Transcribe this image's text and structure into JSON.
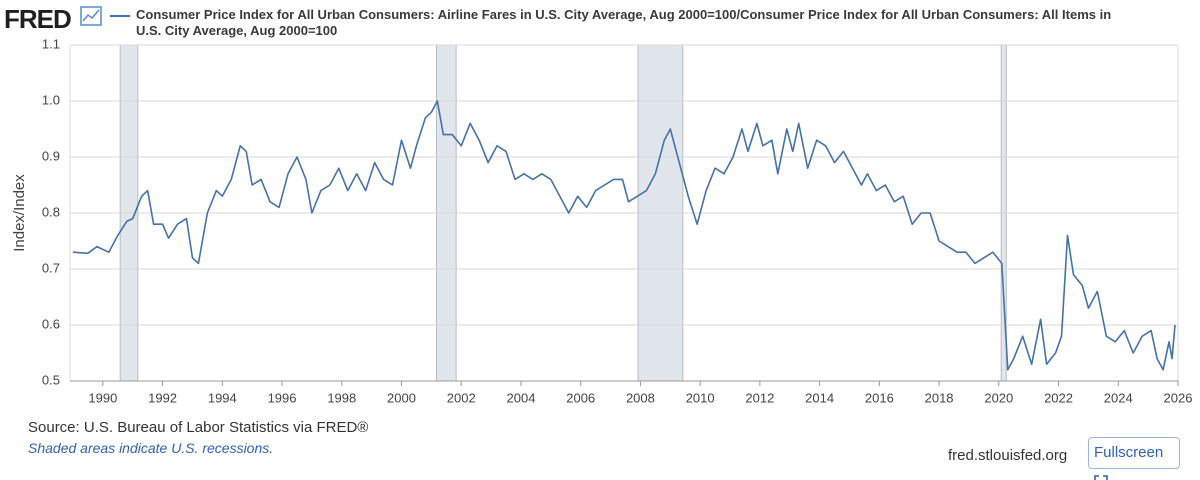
{
  "logo": "FRED",
  "site": "fred.stlouisfed.org",
  "fullscreen": "Fullscreen",
  "chart_data": {
    "type": "line",
    "ylabel": "Index/Index",
    "source": "Source: U.S. Bureau of Labor Statistics via FRED®",
    "note": "Shaded areas indicate U.S. recessions.",
    "xlim": [
      1988.9,
      2026.0
    ],
    "xticks": [
      1990,
      1992,
      1994,
      1996,
      1998,
      2000,
      2002,
      2004,
      2006,
      2008,
      2010,
      2012,
      2014,
      2016,
      2018,
      2020,
      2022,
      2024,
      2026
    ],
    "ylim": [
      0.5,
      1.1
    ],
    "yticks": [
      0.5,
      0.6,
      0.7,
      0.8,
      0.9,
      {
        "value": 1,
        "label": "1.0"
      },
      1.1
    ],
    "grid": true,
    "recessions": [
      [
        1990.58,
        1991.17
      ],
      [
        2001.17,
        2001.83
      ],
      [
        2007.92,
        2009.42
      ],
      [
        2020.08,
        2020.25
      ]
    ],
    "x": [
      1989.0,
      1989.5,
      1989.8,
      1990.2,
      1990.5,
      1990.8,
      1991.0,
      1991.3,
      1991.5,
      1991.7,
      1992.0,
      1992.2,
      1992.5,
      1992.8,
      1993.0,
      1993.2,
      1993.5,
      1993.8,
      1994.0,
      1994.3,
      1994.6,
      1994.8,
      1995.0,
      1995.3,
      1995.6,
      1995.9,
      1996.2,
      1996.5,
      1996.8,
      1997.0,
      1997.3,
      1997.6,
      1997.9,
      1998.2,
      1998.5,
      1998.8,
      1999.1,
      1999.4,
      1999.7,
      2000.0,
      2000.3,
      2000.5,
      2000.8,
      2001.0,
      2001.2,
      2001.4,
      2001.7,
      2002.0,
      2002.3,
      2002.6,
      2002.9,
      2003.2,
      2003.5,
      2003.8,
      2004.1,
      2004.4,
      2004.7,
      2005.0,
      2005.3,
      2005.6,
      2005.9,
      2006.2,
      2006.5,
      2006.8,
      2007.1,
      2007.4,
      2007.6,
      2007.9,
      2008.2,
      2008.5,
      2008.8,
      2009.0,
      2009.3,
      2009.6,
      2009.9,
      2010.2,
      2010.5,
      2010.8,
      2011.1,
      2011.4,
      2011.6,
      2011.9,
      2012.1,
      2012.4,
      2012.6,
      2012.9,
      2013.1,
      2013.3,
      2013.6,
      2013.9,
      2014.2,
      2014.5,
      2014.8,
      2015.1,
      2015.4,
      2015.6,
      2015.9,
      2016.2,
      2016.5,
      2016.8,
      2017.1,
      2017.4,
      2017.7,
      2018.0,
      2018.3,
      2018.6,
      2018.9,
      2019.2,
      2019.5,
      2019.8,
      2020.1,
      2020.3,
      2020.5,
      2020.8,
      2021.1,
      2021.4,
      2021.6,
      2021.9,
      2022.1,
      2022.3,
      2022.5,
      2022.8,
      2023.0,
      2023.3,
      2023.6,
      2023.9,
      2024.2,
      2024.5,
      2024.8,
      2025.1,
      2025.3,
      2025.5,
      2025.7,
      2025.8,
      2025.9
    ],
    "series": [
      {
        "name": "Consumer Price Index for All Urban Consumers: Airline Fares in U.S. City Average, Aug 2000=100/Consumer Price Index for All Urban Consumers: All Items in U.S. City Average, Aug 2000=100",
        "color": "#4572a7",
        "values": [
          0.73,
          0.728,
          0.74,
          0.73,
          0.76,
          0.785,
          0.79,
          0.83,
          0.84,
          0.78,
          0.78,
          0.755,
          0.78,
          0.79,
          0.72,
          0.71,
          0.8,
          0.84,
          0.83,
          0.86,
          0.92,
          0.91,
          0.85,
          0.86,
          0.82,
          0.81,
          0.87,
          0.9,
          0.86,
          0.8,
          0.84,
          0.85,
          0.88,
          0.84,
          0.87,
          0.84,
          0.89,
          0.86,
          0.85,
          0.93,
          0.88,
          0.92,
          0.97,
          0.98,
          1.0,
          0.94,
          0.94,
          0.92,
          0.96,
          0.93,
          0.89,
          0.92,
          0.91,
          0.86,
          0.87,
          0.86,
          0.87,
          0.86,
          0.83,
          0.8,
          0.83,
          0.81,
          0.84,
          0.85,
          0.86,
          0.86,
          0.82,
          0.83,
          0.84,
          0.87,
          0.93,
          0.95,
          0.89,
          0.83,
          0.78,
          0.84,
          0.88,
          0.87,
          0.9,
          0.95,
          0.91,
          0.96,
          0.92,
          0.93,
          0.87,
          0.95,
          0.91,
          0.96,
          0.88,
          0.93,
          0.92,
          0.89,
          0.91,
          0.88,
          0.85,
          0.87,
          0.84,
          0.85,
          0.82,
          0.83,
          0.78,
          0.8,
          0.8,
          0.75,
          0.74,
          0.73,
          0.73,
          0.71,
          0.72,
          0.73,
          0.71,
          0.52,
          0.54,
          0.58,
          0.53,
          0.61,
          0.53,
          0.55,
          0.58,
          0.76,
          0.69,
          0.67,
          0.63,
          0.66,
          0.58,
          0.57,
          0.59,
          0.55,
          0.58,
          0.59,
          0.54,
          0.52,
          0.57,
          0.54,
          0.6
        ]
      }
    ]
  }
}
